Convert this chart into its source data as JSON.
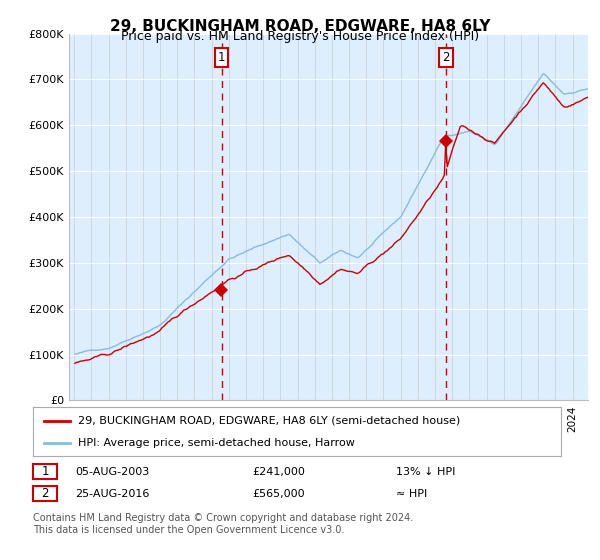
{
  "title": "29, BUCKINGHAM ROAD, EDGWARE, HA8 6LY",
  "subtitle": "Price paid vs. HM Land Registry's House Price Index (HPI)",
  "legend_label_red": "29, BUCKINGHAM ROAD, EDGWARE, HA8 6LY (semi-detached house)",
  "legend_label_blue": "HPI: Average price, semi-detached house, Harrow",
  "annotation1_date": "05-AUG-2003",
  "annotation1_price": "£241,000",
  "annotation1_hpi": "13% ↓ HPI",
  "annotation2_date": "25-AUG-2016",
  "annotation2_price": "£565,000",
  "annotation2_hpi": "≈ HPI",
  "footnote1": "Contains HM Land Registry data © Crown copyright and database right 2024.",
  "footnote2": "This data is licensed under the Open Government Licence v3.0.",
  "ylim_min": 0,
  "ylim_max": 800000,
  "xlim_min": 1994.7,
  "xlim_max": 2024.9,
  "background_color": "#ffffff",
  "plot_bg_color": "#ddeeff",
  "grid_color": "#e8e8e8",
  "red_line_color": "#cc0000",
  "blue_line_color": "#88bbdd",
  "vline_color": "#cc0000",
  "marker_color": "#cc0000",
  "ann_box_color": "#cc0000",
  "title_fontsize": 11,
  "subtitle_fontsize": 9,
  "tick_fontsize": 8,
  "legend_fontsize": 8,
  "ann_fontsize": 8,
  "footnote_fontsize": 7,
  "date1_year": 2003.58,
  "date2_year": 2016.64,
  "price1": 241000,
  "price2": 565000
}
